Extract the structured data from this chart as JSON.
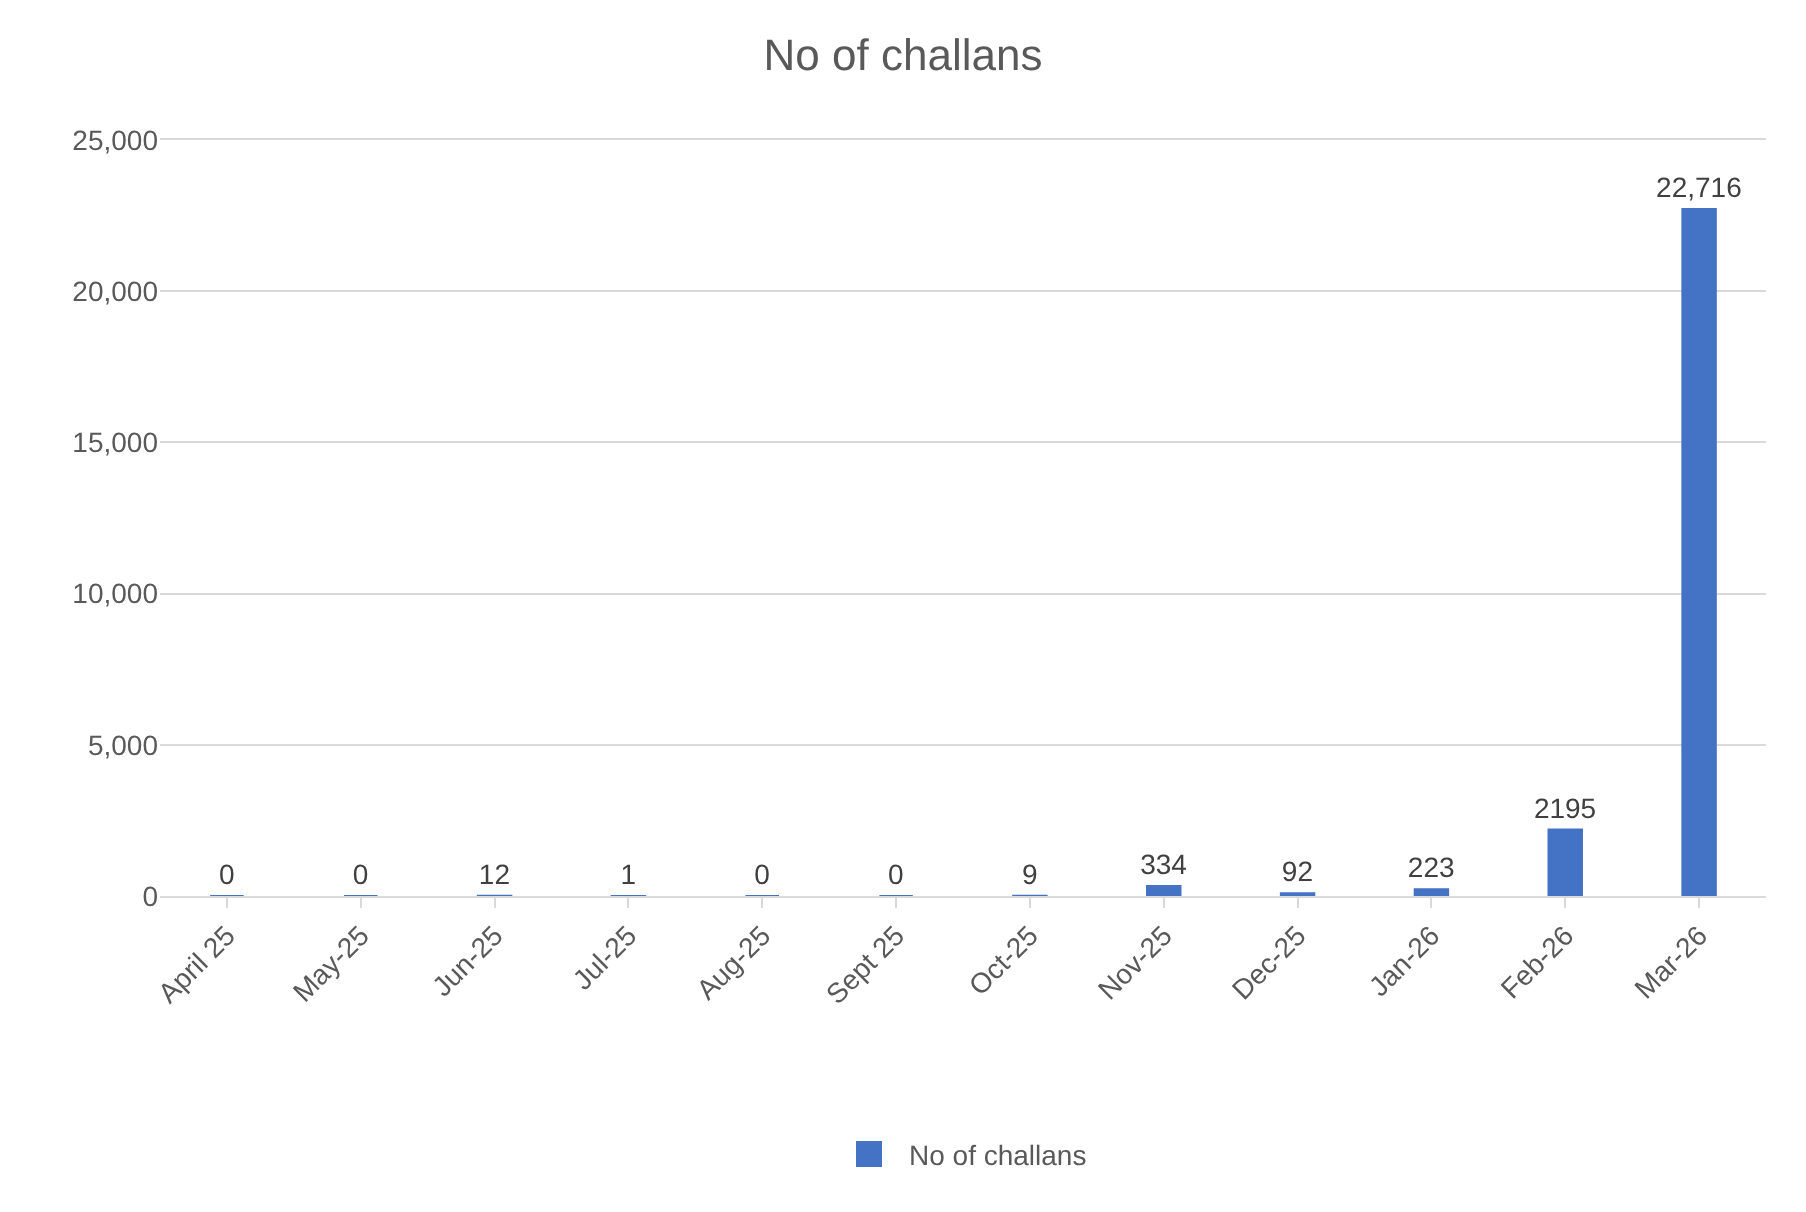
{
  "chart_data": {
    "type": "bar",
    "title": "No of challans",
    "categories": [
      "April 25",
      "May-25",
      "Jun-25",
      "Jul-25",
      "Aug-25",
      "Sept 25",
      "Oct-25",
      "Nov-25",
      "Dec-25",
      "Jan-26",
      "Feb-26",
      "Mar-26"
    ],
    "series": [
      {
        "name": "No of challans",
        "color": "#4472c4",
        "values": [
          0,
          0,
          12,
          1,
          0,
          0,
          9,
          334,
          92,
          223,
          2195,
          22716
        ],
        "value_labels": [
          "0",
          "0",
          "12",
          "1",
          "0",
          "0",
          "9",
          "334",
          "92",
          "223",
          "2195",
          "22,716"
        ]
      }
    ],
    "ylim": [
      0,
      25000
    ],
    "yticks": [
      {
        "value": 0,
        "label": "0"
      },
      {
        "value": 5000,
        "label": "5,000"
      },
      {
        "value": 10000,
        "label": "10,000"
      },
      {
        "value": 15000,
        "label": "15,000"
      },
      {
        "value": 20000,
        "label": "20,000"
      },
      {
        "value": 25000,
        "label": "25,000"
      }
    ],
    "grid": "y",
    "legend": "bottom"
  }
}
